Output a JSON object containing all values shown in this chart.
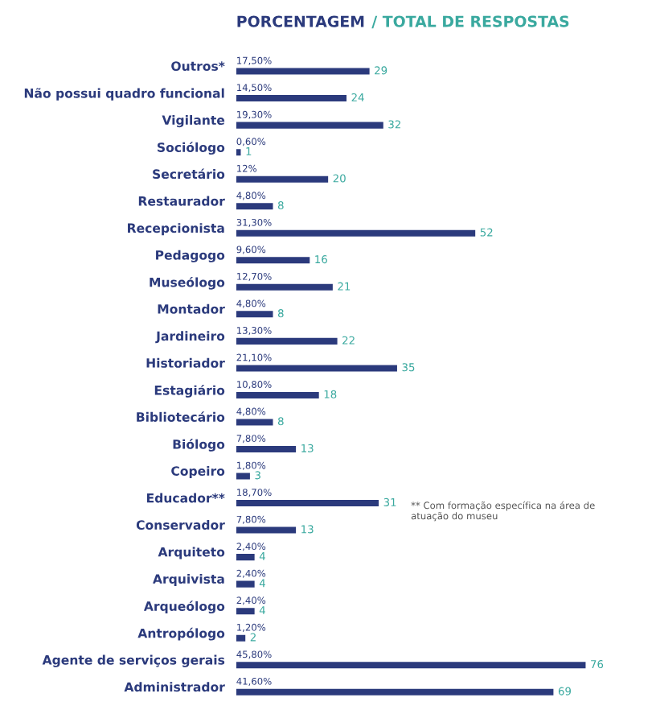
{
  "chart_data": {
    "type": "bar",
    "orientation": "horizontal",
    "title": "PORCENTAGEM",
    "subtitle": "/ TOTAL DE RESPOSTAS",
    "categories": [
      "Outros*",
      "Não possui quadro funcional",
      "Vigilante",
      "Sociólogo",
      "Secretário",
      "Restaurador",
      "Recepcionista",
      "Pedagogo",
      "Museólogo",
      "Montador",
      "Jardineiro",
      "Historiador",
      "Estagiário",
      "Bibliotecário",
      "Biólogo",
      "Copeiro",
      "Educador**",
      "Conservador",
      "Arquiteto",
      "Arquivista",
      "Arqueólogo",
      "Antropólogo",
      "Agente de serviços gerais",
      "Administrador"
    ],
    "series": [
      {
        "color": "#2b3a7c",
        "values": [
          29,
          24,
          32,
          1,
          20,
          8,
          52,
          16,
          21,
          8,
          22,
          35,
          18,
          8,
          13,
          3,
          31,
          13,
          4,
          4,
          4,
          2,
          76,
          69
        ]
      }
    ],
    "data_labels": true,
    "annotations": [
      "17,50%",
      "14,50%",
      "19,30%",
      "0,60%",
      "12%",
      "4,80%",
      "31,30%",
      "9,60%",
      "12,70%",
      "4,80%",
      "13,30%",
      "21,10%",
      "10,80%",
      "4,80%",
      "7,80%",
      "1,80%",
      "18,70%",
      "7,80%",
      "2,40%",
      "2,40%",
      "2,40%",
      "1,20%",
      "45,80%",
      "41,60%",
      "** Com formação específica na área de atuação do museu"
    ]
  }
}
